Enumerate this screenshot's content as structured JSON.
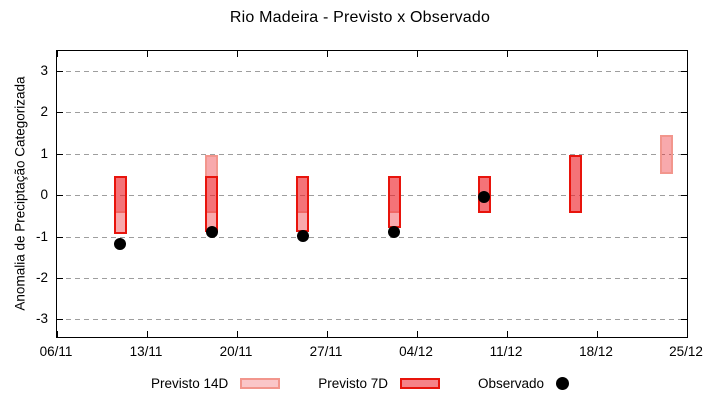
{
  "title": "Rio Madeira - Previsto x Observado",
  "ylabel": "Anomalia de Preciptação Categorizada",
  "legend": {
    "previsto14_label": "Previsto 14D",
    "previsto7_label": "Previsto 7D",
    "observado_label": "Observado"
  },
  "colors": {
    "bar_fill_rgba": "rgba(237,28,36,0.38)",
    "border_7d": "#e8140c",
    "border_14d": "#f2968d",
    "legend14_fill": "rgba(237,28,36,0.25)",
    "legend7_fill": "rgba(237,28,36,0.55)",
    "observado": "#000000",
    "grid": "#9e9e9e",
    "axis": "#000000"
  },
  "chart_data": {
    "type": "range-bars+scatter",
    "title": "Rio Madeira - Previsto x Observado",
    "xlabel": "",
    "ylabel": "Anomalia de Preciptação Categorizada",
    "x_tick_labels": [
      "06/11",
      "13/11",
      "20/11",
      "27/11",
      "04/12",
      "11/12",
      "18/12",
      "25/12"
    ],
    "x_days_span": 49,
    "y_ticks": [
      3,
      2,
      1,
      0,
      -1,
      -2,
      -3
    ],
    "ylim_display": [
      -3.4,
      3.5
    ],
    "grid": "horizontal-dashed",
    "legend_position": "below",
    "series_names": [
      "Previsto 14D",
      "Previsto 7D",
      "Observado"
    ],
    "points": [
      {
        "date": "11/11",
        "day": 5.0,
        "p14_lo": -0.45,
        "p14_hi": 0.45,
        "p7_lo": -0.95,
        "p7_hi": 0.45,
        "obs": -1.2
      },
      {
        "date": "18/11",
        "day": 12.1,
        "p14_lo": -0.45,
        "p14_hi": 0.95,
        "p7_lo": -0.9,
        "p7_hi": 0.45,
        "obs": -0.9
      },
      {
        "date": "25/11",
        "day": 19.2,
        "p14_lo": -0.45,
        "p14_hi": 0.45,
        "p7_lo": -0.9,
        "p7_hi": 0.45,
        "obs": -1.0
      },
      {
        "date": "02/12",
        "day": 26.3,
        "p14_lo": -0.45,
        "p14_hi": 0.45,
        "p7_lo": -0.8,
        "p7_hi": 0.45,
        "obs": -0.9
      },
      {
        "date": "09/12",
        "day": 33.3,
        "p14_lo": -0.45,
        "p14_hi": 0.45,
        "p7_lo": -0.45,
        "p7_hi": 0.45,
        "obs": -0.05
      },
      {
        "date": "16/12",
        "day": 40.4,
        "p14_lo": -0.45,
        "p14_hi": 0.95,
        "p7_lo": -0.45,
        "p7_hi": 0.95,
        "obs": null
      },
      {
        "date": "23/12",
        "day": 47.5,
        "p14_lo": 0.5,
        "p14_hi": 1.45,
        "p7_lo": null,
        "p7_hi": null,
        "obs": null
      }
    ]
  }
}
